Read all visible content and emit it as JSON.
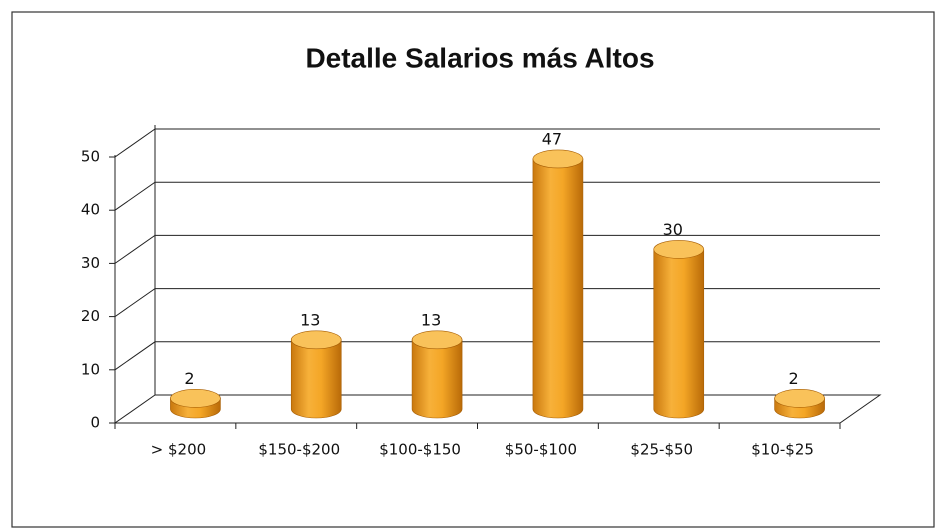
{
  "chart_data": {
    "type": "bar",
    "title": "Detalle Salarios más Altos",
    "categories": [
      "> $200",
      "$150-$200",
      "$100-$150",
      "$50-$100",
      "$25-$50",
      "$10-$25"
    ],
    "values": [
      2,
      13,
      13,
      47,
      30,
      2
    ],
    "color": "#f0a020",
    "ylim": [
      0,
      50
    ],
    "yticks": [
      0,
      10,
      20,
      30,
      40,
      50
    ],
    "grid": true
  }
}
